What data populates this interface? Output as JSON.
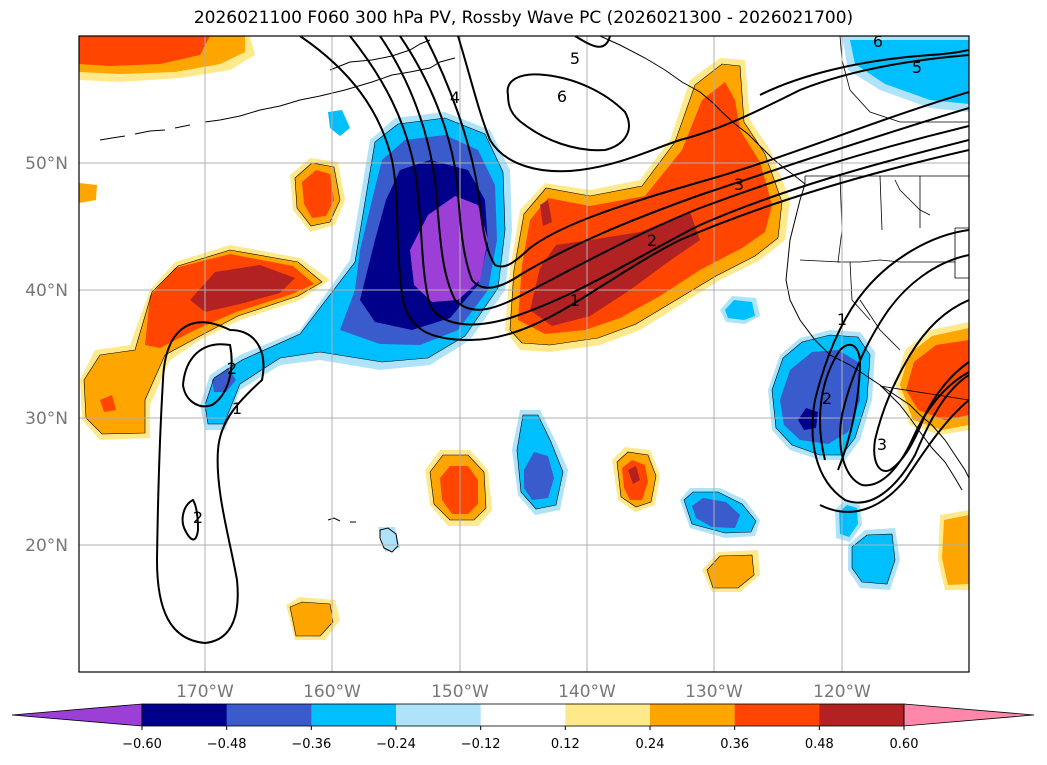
{
  "title": "2026021100 F060 300 hPa PV, Rossby Wave PC (2026021300 - 2026021700)",
  "map": {
    "lat_labels": [
      "50°N",
      "40°N",
      "30°N",
      "20°N"
    ],
    "lon_labels": [
      "170°W",
      "160°W",
      "150°W",
      "140°W",
      "130°W",
      "120°W"
    ],
    "contour_labels": [
      "5",
      "6",
      "6",
      "5",
      "4",
      "3",
      "2",
      "1",
      "2",
      "1",
      "2",
      "1",
      "2",
      "3"
    ]
  },
  "colorbar": {
    "ticks": [
      "−0.60",
      "−0.48",
      "−0.36",
      "−0.24",
      "−0.12",
      "0.12",
      "0.24",
      "0.36",
      "0.48",
      "0.60"
    ],
    "colors": [
      "#9b3fd6",
      "#00008b",
      "#3a5bcc",
      "#00bfff",
      "#aee3fa",
      "#ffffff",
      "#ffe98a",
      "#ffa500",
      "#ff4500",
      "#b22222",
      "#ff88aa"
    ]
  }
}
